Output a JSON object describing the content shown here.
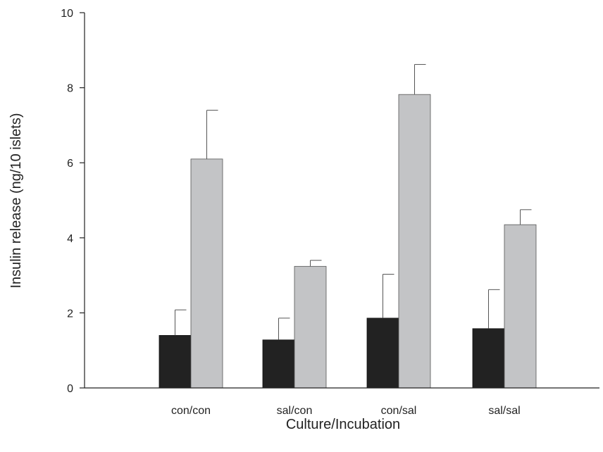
{
  "chart_data": {
    "type": "bar",
    "title": "",
    "xlabel": "Culture/Incubation",
    "ylabel": "Insulin release (ng/10 islets)",
    "ylim": [
      0,
      10
    ],
    "yticks": [
      0,
      2,
      4,
      6,
      8,
      10
    ],
    "categories": [
      "con/con",
      "sal/con",
      "con/sal",
      "sal/sal"
    ],
    "grid": false,
    "legend": "none",
    "series": [
      {
        "color": "#222222",
        "values": [
          1.4,
          1.28,
          1.86,
          1.58
        ],
        "errors": [
          0.68,
          0.58,
          1.17,
          1.04
        ]
      },
      {
        "color": "#c3c4c6",
        "values": [
          6.1,
          3.24,
          7.82,
          4.35
        ],
        "errors": [
          1.3,
          0.16,
          0.8,
          0.4
        ]
      }
    ]
  }
}
